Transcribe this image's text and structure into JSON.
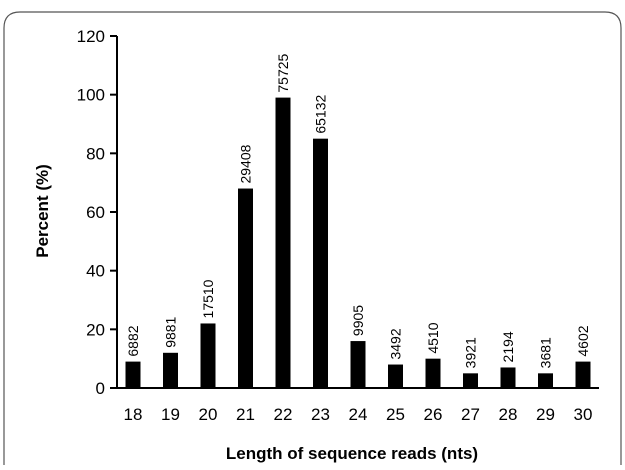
{
  "chart_data": {
    "type": "bar",
    "title": "",
    "xlabel": "Length of sequence reads (nts)",
    "ylabel": "Percent (%)",
    "ylim": [
      0,
      120
    ],
    "yticks": [
      0,
      20,
      40,
      60,
      80,
      100,
      120
    ],
    "categories": [
      "18",
      "19",
      "20",
      "21",
      "22",
      "23",
      "24",
      "25",
      "26",
      "27",
      "28",
      "29",
      "30"
    ],
    "values": [
      9,
      12,
      22,
      68,
      99,
      85,
      16,
      8,
      10,
      5,
      7,
      5,
      9
    ],
    "data_labels": [
      "6882",
      "9881",
      "17510",
      "29408",
      "75725",
      "65132",
      "9905",
      "3492",
      "4510",
      "3921",
      "2194",
      "3681",
      "4602"
    ],
    "bar_color": "#000000",
    "grid": false,
    "legend": "none"
  }
}
